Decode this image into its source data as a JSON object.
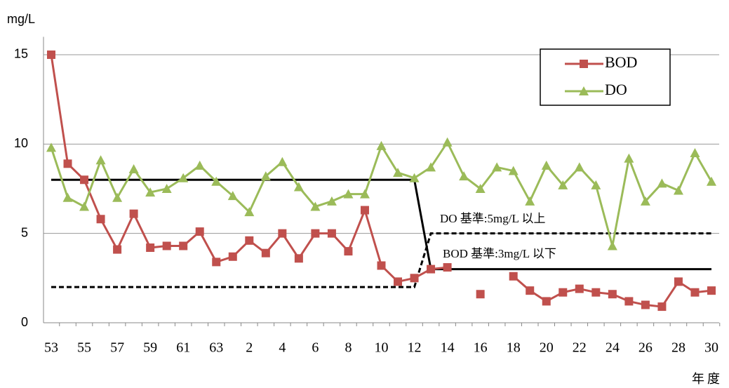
{
  "chart_data": {
    "type": "line",
    "y_label": "mg/L",
    "x_label": "年度",
    "categories": [
      "53",
      null,
      "55",
      null,
      "57",
      null,
      "59",
      null,
      "61",
      null,
      "63",
      null,
      "2",
      null,
      "4",
      null,
      "6",
      null,
      "8",
      null,
      "10",
      null,
      "12",
      null,
      "14",
      null,
      "16",
      null,
      "18",
      null,
      "20",
      null,
      "22",
      null,
      "24",
      null,
      "26",
      null,
      "28",
      null,
      "30"
    ],
    "series": [
      {
        "name": "BOD",
        "color": "#c0504d",
        "marker": "square",
        "values": [
          15,
          8.9,
          8.0,
          5.8,
          4.1,
          6.1,
          4.2,
          4.3,
          4.3,
          5.1,
          3.4,
          3.7,
          4.6,
          3.9,
          5.0,
          3.6,
          5.0,
          5.0,
          4.0,
          6.3,
          3.2,
          2.3,
          2.5,
          3.0,
          3.1,
          null,
          1.6,
          null,
          2.6,
          1.8,
          1.2,
          1.7,
          1.9,
          1.7,
          1.6,
          1.2,
          1.0,
          0.9,
          2.3,
          1.7,
          1.8
        ]
      },
      {
        "name": "DO",
        "color": "#9bbb59",
        "marker": "triangle",
        "values": [
          9.8,
          7.0,
          6.5,
          9.1,
          7.0,
          8.6,
          7.3,
          7.5,
          8.1,
          8.8,
          7.9,
          7.1,
          6.2,
          8.2,
          9.0,
          7.6,
          6.5,
          6.8,
          7.2,
          7.2,
          9.9,
          8.4,
          8.1,
          8.7,
          10.1,
          8.2,
          7.5,
          8.7,
          8.5,
          6.8,
          8.8,
          7.7,
          8.7,
          7.7,
          4.3,
          9.2,
          6.8,
          7.8,
          7.4,
          9.5,
          7.9
        ]
      }
    ],
    "reference_lines": [
      {
        "label": "BOD 基準:3mg/L 以下",
        "color": "#000000",
        "dashed": false,
        "values": [
          8,
          8,
          8,
          8,
          8,
          8,
          8,
          8,
          8,
          8,
          8,
          8,
          8,
          8,
          8,
          8,
          8,
          8,
          8,
          8,
          8,
          8,
          8,
          3,
          3,
          3,
          3,
          3,
          3,
          3,
          3,
          3,
          3,
          3,
          3,
          3,
          3,
          3,
          3,
          3,
          3
        ]
      },
      {
        "label": "DO 基準:5mg/L 以上",
        "color": "#000000",
        "dashed": true,
        "values": [
          2,
          2,
          2,
          2,
          2,
          2,
          2,
          2,
          2,
          2,
          2,
          2,
          2,
          2,
          2,
          2,
          2,
          2,
          2,
          2,
          2,
          2,
          2,
          5,
          5,
          5,
          5,
          5,
          5,
          5,
          5,
          5,
          5,
          5,
          5,
          5,
          5,
          5,
          5,
          5,
          5
        ]
      }
    ],
    "ylim": [
      0,
      16
    ],
    "yticks": [
      0,
      5,
      10,
      15
    ],
    "grid": true,
    "legend": "upper right"
  }
}
